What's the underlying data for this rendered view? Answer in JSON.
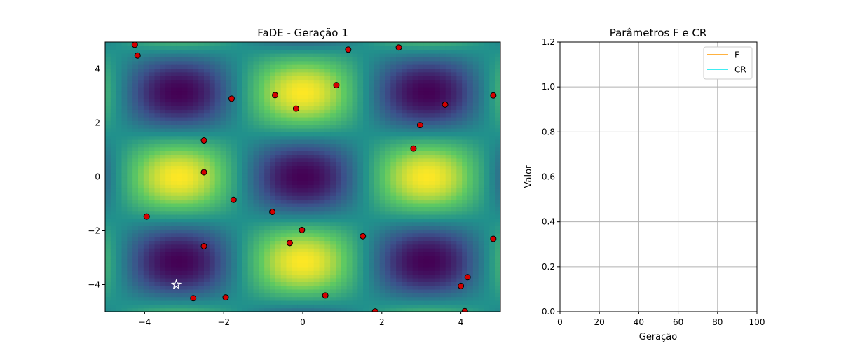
{
  "chart_data": [
    {
      "type": "scatter",
      "title": "FaDE - Geração 1",
      "xlabel": "",
      "ylabel": "",
      "xlim": [
        -5,
        5
      ],
      "ylim": [
        -5,
        5
      ],
      "xticks": [
        -4,
        -2,
        0,
        2,
        4
      ],
      "yticks": [
        -4,
        -2,
        0,
        2,
        4
      ],
      "x_tick_labels": [
        "−4",
        "−2",
        "0",
        "2",
        "4"
      ],
      "y_tick_labels": [
        "−4",
        "−2",
        "0",
        "2",
        "4"
      ],
      "background": "contour heatmap of cos(x)·cos(y) style function, viridis colormap",
      "colormap": [
        "#440154",
        "#3b528b",
        "#21918c",
        "#5ec962",
        "#fde725"
      ],
      "points_color": "#d40000",
      "points": [
        {
          "x": -4.25,
          "y": 4.9
        },
        {
          "x": -4.18,
          "y": 4.5
        },
        {
          "x": -3.95,
          "y": -1.47
        },
        {
          "x": -2.5,
          "y": 1.35
        },
        {
          "x": -2.5,
          "y": 0.17
        },
        {
          "x": -2.5,
          "y": -2.57
        },
        {
          "x": -2.77,
          "y": -4.5
        },
        {
          "x": -1.95,
          "y": -4.47
        },
        {
          "x": -1.8,
          "y": 2.9
        },
        {
          "x": -1.75,
          "y": -0.85
        },
        {
          "x": -0.77,
          "y": -1.3
        },
        {
          "x": -0.7,
          "y": 3.03
        },
        {
          "x": -0.33,
          "y": -2.45
        },
        {
          "x": -0.17,
          "y": 2.53
        },
        {
          "x": -0.02,
          "y": -1.97
        },
        {
          "x": 0.57,
          "y": -4.4
        },
        {
          "x": 0.85,
          "y": 3.4
        },
        {
          "x": 1.15,
          "y": 4.72
        },
        {
          "x": 1.52,
          "y": -2.2
        },
        {
          "x": 1.83,
          "y": -4.99
        },
        {
          "x": 2.43,
          "y": 4.8
        },
        {
          "x": 2.8,
          "y": 1.05
        },
        {
          "x": 2.97,
          "y": 1.92
        },
        {
          "x": 3.6,
          "y": 2.68
        },
        {
          "x": 4.0,
          "y": -4.05
        },
        {
          "x": 4.1,
          "y": -4.98
        },
        {
          "x": 4.17,
          "y": -3.72
        },
        {
          "x": 4.82,
          "y": 3.02
        },
        {
          "x": 4.82,
          "y": -2.3
        }
      ],
      "best": {
        "x": -3.2,
        "y": -4.0,
        "marker": "star"
      }
    },
    {
      "type": "line",
      "title": "Parâmetros F e CR",
      "xlabel": "Geração",
      "ylabel": "Valor",
      "xlim": [
        0,
        100
      ],
      "ylim": [
        0,
        1.2
      ],
      "xticks": [
        0,
        20,
        40,
        60,
        80,
        100
      ],
      "yticks": [
        0,
        0.2,
        0.4,
        0.6,
        0.8,
        1.0,
        1.2
      ],
      "x_tick_labels": [
        "0",
        "20",
        "40",
        "60",
        "80",
        "100"
      ],
      "y_tick_labels": [
        "0.0",
        "0.2",
        "0.4",
        "0.6",
        "0.8",
        "1.0",
        "1.2"
      ],
      "grid": true,
      "legend": "top-right",
      "series": [
        {
          "name": "F",
          "color": "#ff9900",
          "x": [],
          "values": []
        },
        {
          "name": "CR",
          "color": "#00e5ee",
          "x": [],
          "values": []
        }
      ]
    }
  ]
}
